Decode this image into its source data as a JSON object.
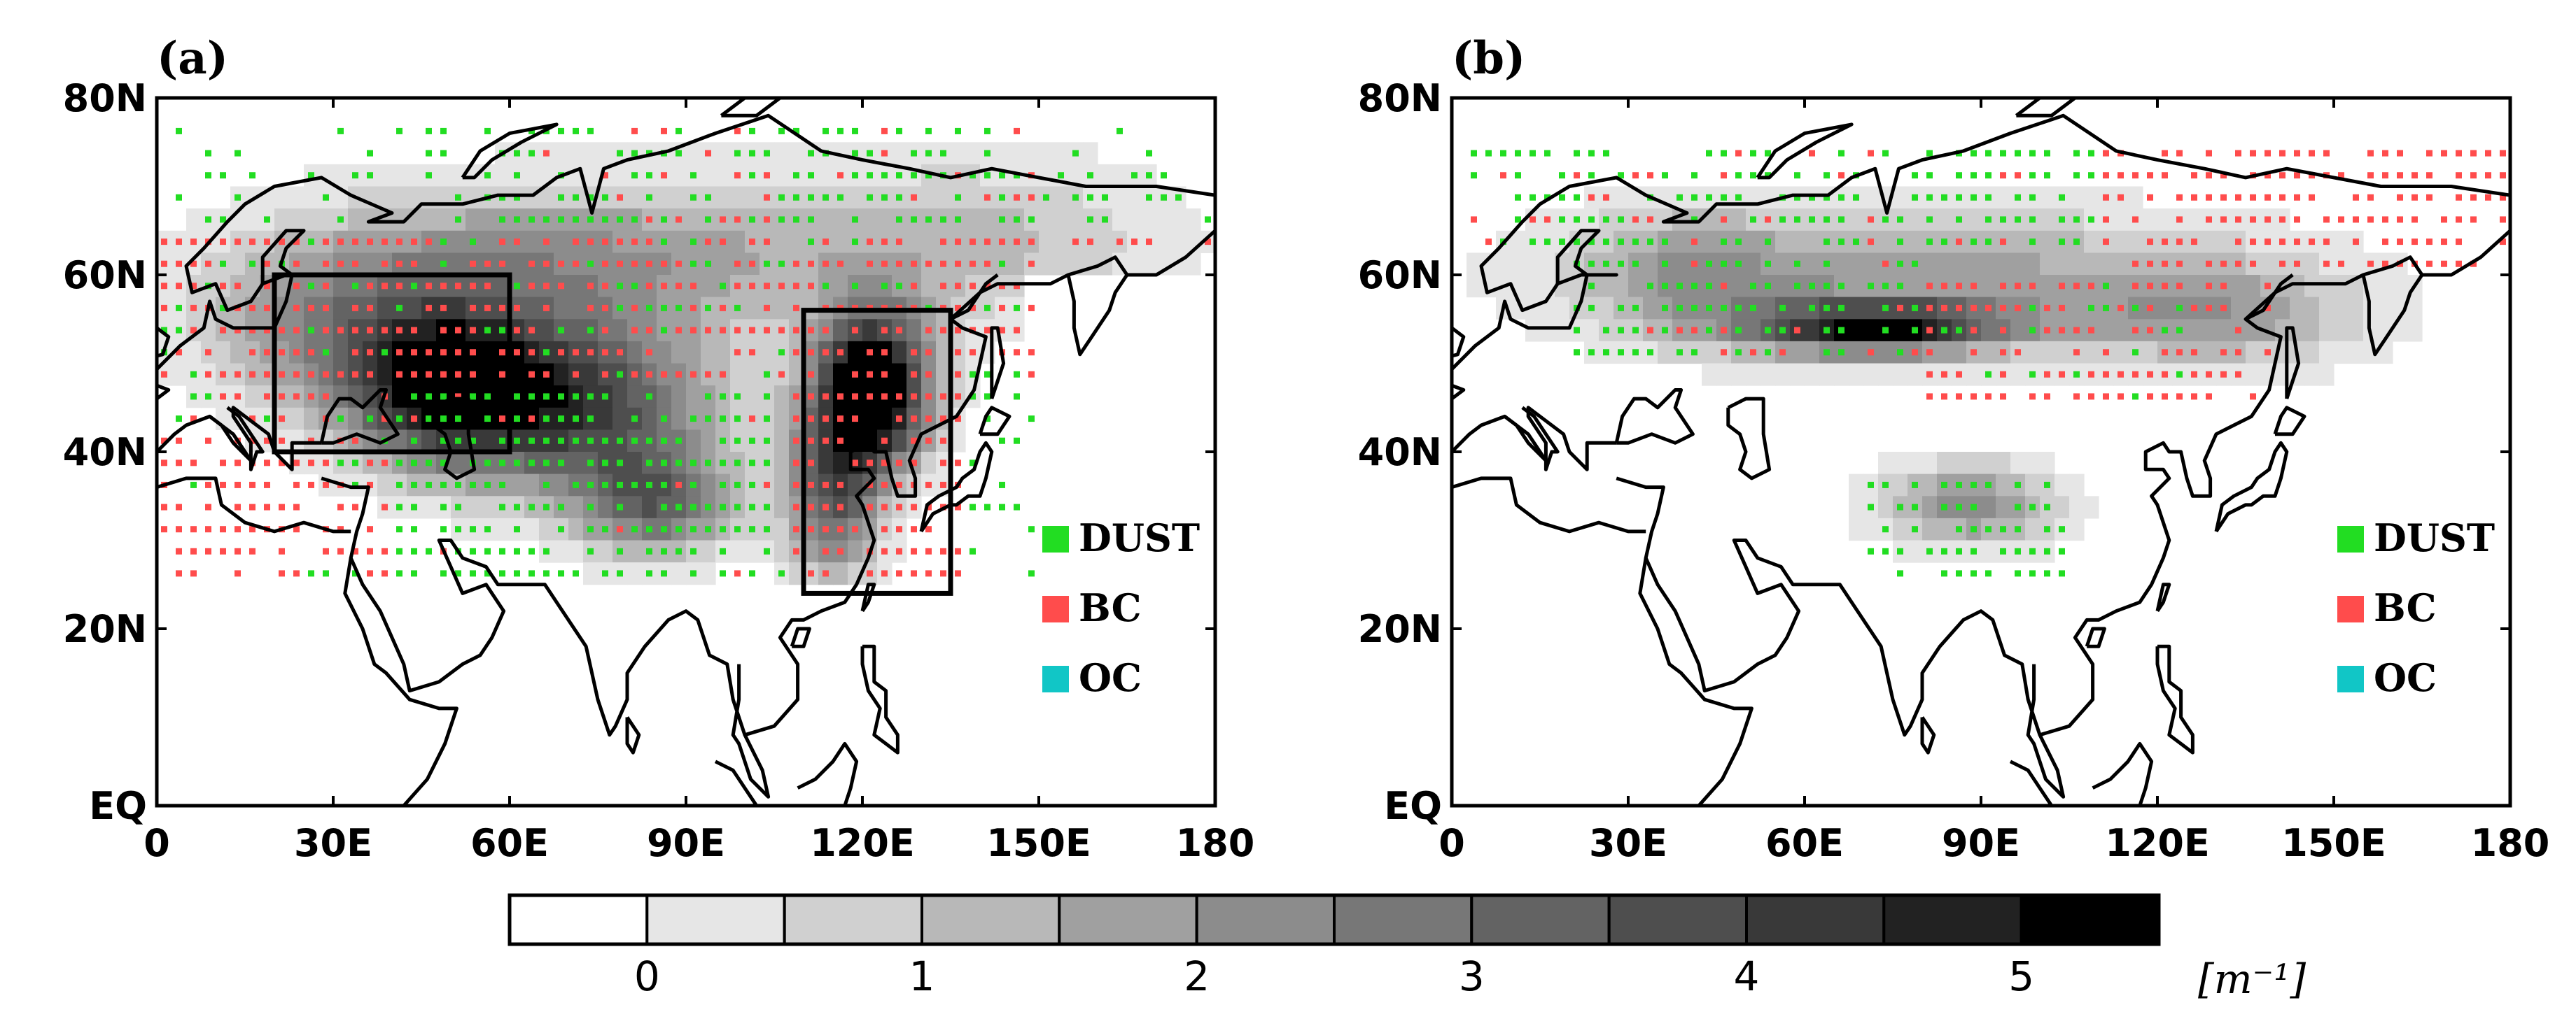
{
  "panels": [
    {
      "label": "(a)",
      "lat_ticks": [
        "80N",
        "60N",
        "40N",
        "20N",
        "EQ"
      ],
      "lon_ticks": [
        "0",
        "30E",
        "60E",
        "90E",
        "120E",
        "150E",
        "180"
      ],
      "lon_range": [
        0,
        180
      ],
      "lat_range": [
        0,
        80
      ],
      "boxes": [
        {
          "lon": [
            20,
            60
          ],
          "lat": [
            40,
            60
          ]
        },
        {
          "lon": [
            110,
            135
          ],
          "lat": [
            24,
            56
          ]
        }
      ]
    },
    {
      "label": "(b)",
      "lat_ticks": [
        "80N",
        "60N",
        "40N",
        "20N",
        "EQ"
      ],
      "lon_ticks": [
        "0",
        "30E",
        "60E",
        "90E",
        "120E",
        "150E",
        "180"
      ],
      "lon_range": [
        0,
        180
      ],
      "lat_range": [
        0,
        80
      ],
      "boxes": []
    }
  ],
  "legend": [
    {
      "label": "DUST",
      "color": "#22dd22"
    },
    {
      "label": "BC",
      "color": "#ff4c4c"
    },
    {
      "label": "OC",
      "color": "#11c6c6"
    }
  ],
  "colorbar": {
    "labels": [
      "0",
      "1",
      "2",
      "3",
      "4",
      "5"
    ],
    "unit": "[m⁻¹]",
    "shades": [
      "#ffffff",
      "#e6e6e6",
      "#d0d0d0",
      "#b8b8b8",
      "#a0a0a0",
      "#8c8c8c",
      "#777777",
      "#636363",
      "#4e4e4e",
      "#393939",
      "#222222",
      "#000000"
    ]
  }
}
